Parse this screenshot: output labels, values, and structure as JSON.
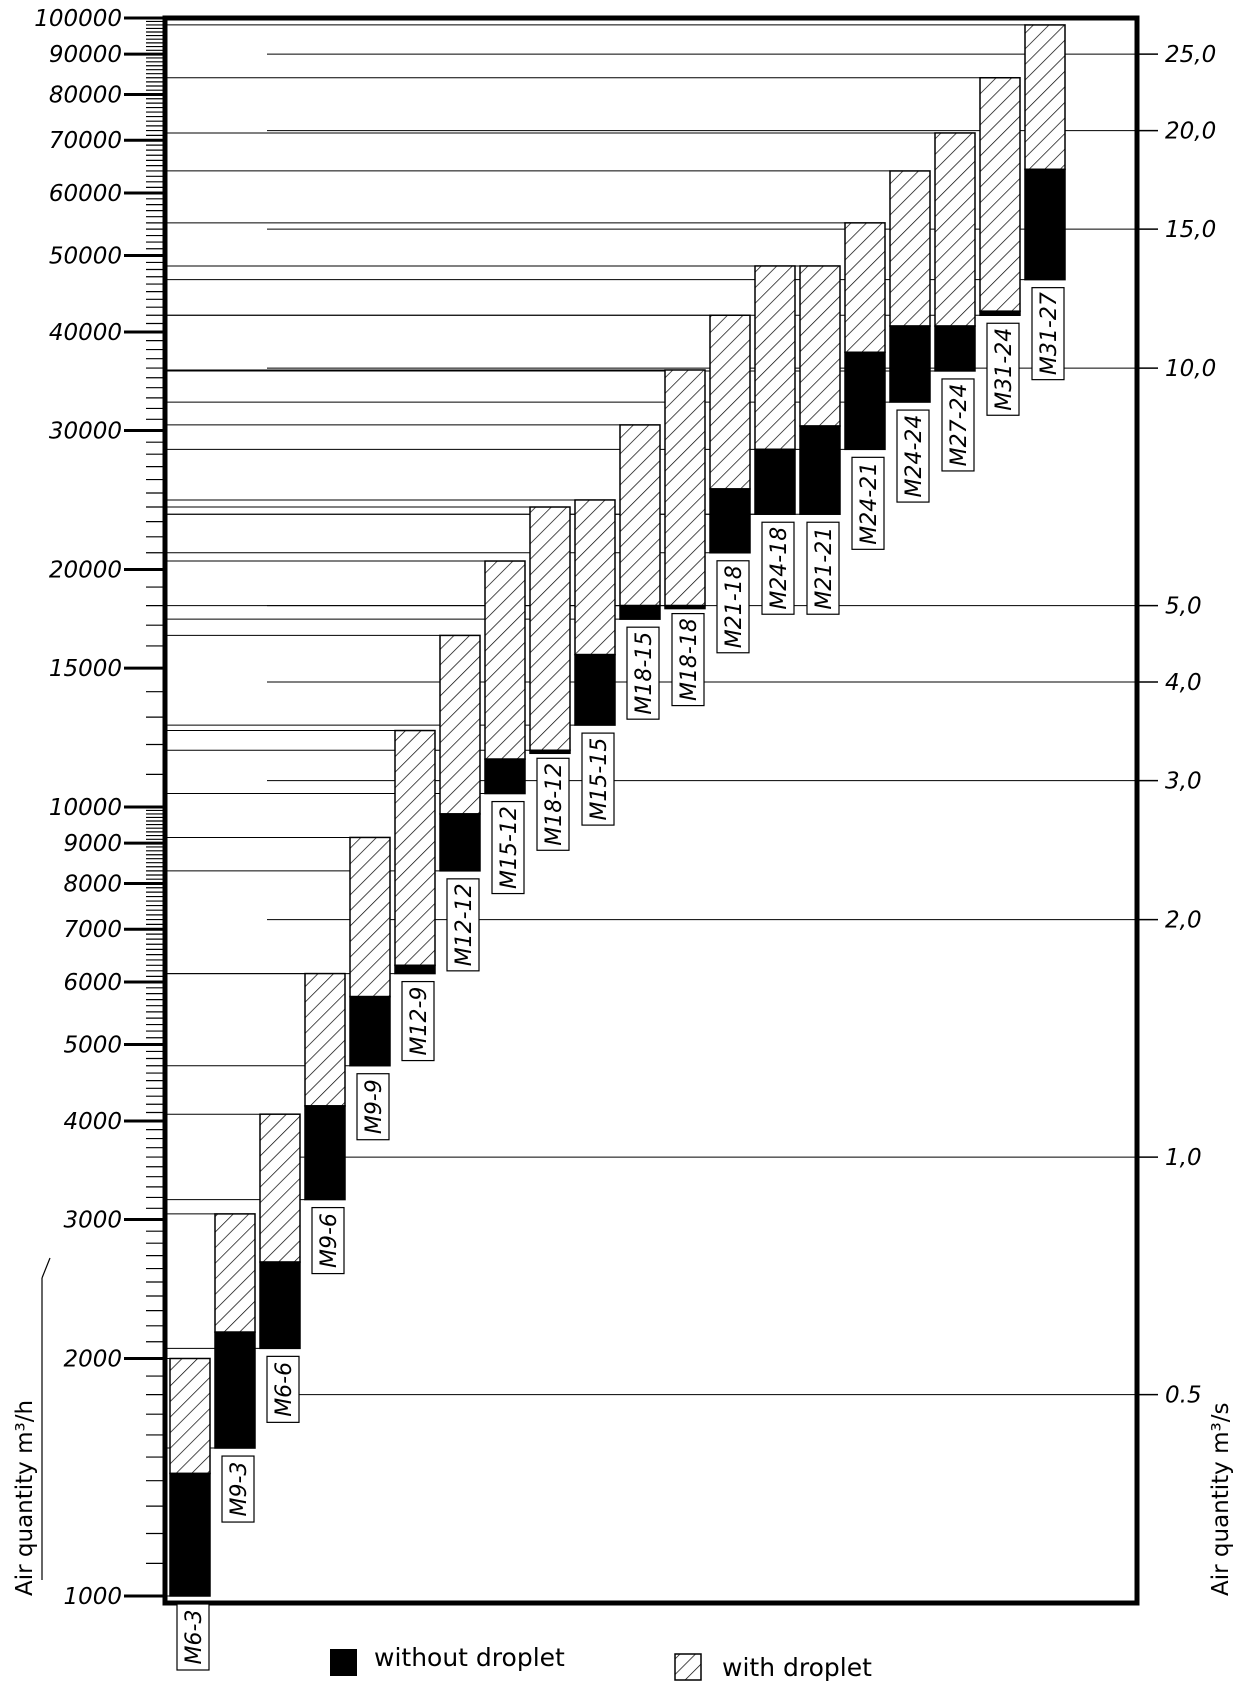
{
  "chart_data": {
    "type": "bar",
    "subtype": "floating-range",
    "y_scale": "log",
    "ylabel": "Air quantity m³/h",
    "y2label": "Air quantity m³/s",
    "ylim": [
      1000,
      100000
    ],
    "grid": false,
    "left_ticks": [
      {
        "value": 1000,
        "label": "1000"
      },
      {
        "value": 2000,
        "label": "2000"
      },
      {
        "value": 3000,
        "label": "3000"
      },
      {
        "value": 4000,
        "label": "4000"
      },
      {
        "value": 5000,
        "label": "5000"
      },
      {
        "value": 6000,
        "label": "6000"
      },
      {
        "value": 7000,
        "label": "7000"
      },
      {
        "value": 8000,
        "label": "8000"
      },
      {
        "value": 9000,
        "label": "9000"
      },
      {
        "value": 10000,
        "label": "10000"
      },
      {
        "value": 15000,
        "label": "15000"
      },
      {
        "value": 20000,
        "label": "20000"
      },
      {
        "value": 30000,
        "label": "30000"
      },
      {
        "value": 40000,
        "label": "40000"
      },
      {
        "value": 50000,
        "label": "50000"
      },
      {
        "value": 60000,
        "label": "60000"
      },
      {
        "value": 70000,
        "label": "70000"
      },
      {
        "value": 80000,
        "label": "80000"
      },
      {
        "value": 90000,
        "label": "90000"
      },
      {
        "value": 100000,
        "label": "100000"
      }
    ],
    "right_ticks": [
      {
        "value": 0.5,
        "label": "0.5"
      },
      {
        "value": 1.0,
        "label": "1,0"
      },
      {
        "value": 2.0,
        "label": "2,0"
      },
      {
        "value": 3.0,
        "label": "3,0"
      },
      {
        "value": 4.0,
        "label": "4,0"
      },
      {
        "value": 5.0,
        "label": "5,0"
      },
      {
        "value": 10.0,
        "label": "10,0"
      },
      {
        "value": 15.0,
        "label": "15,0"
      },
      {
        "value": 20.0,
        "label": "20,0"
      },
      {
        "value": 25.0,
        "label": "25,0"
      }
    ],
    "legend": {
      "placement": "bottom",
      "items": [
        {
          "name": "without droplet",
          "style": "solid"
        },
        {
          "name": "with droplet",
          "style": "hatched"
        }
      ]
    },
    "categories": [
      "M6-3",
      "M9-3",
      "M6-6",
      "M9-6",
      "M9-9",
      "M12-9",
      "M12-12",
      "M15-12",
      "M18-12",
      "M15-15",
      "M18-15",
      "M18-18",
      "M21-18",
      "M24-18",
      "M21-21",
      "M24-21",
      "M24-24",
      "M27-24",
      "M31-24",
      "M31-27"
    ],
    "series": [
      {
        "name": "without droplet",
        "ranges": [
          [
            1000,
            1430
          ],
          [
            1540,
            2160
          ],
          [
            2060,
            2650
          ],
          [
            3180,
            4180
          ],
          [
            4700,
            5750
          ],
          [
            6150,
            6300
          ],
          [
            8300,
            9800
          ],
          [
            10400,
            11500
          ],
          [
            11800,
            11800
          ],
          [
            12700,
            15600
          ],
          [
            17300,
            18000
          ],
          [
            18000,
            18000
          ],
          [
            21000,
            25300
          ],
          [
            23500,
            28400
          ],
          [
            23500,
            30400
          ],
          [
            28400,
            37700
          ],
          [
            32600,
            40700
          ],
          [
            35700,
            40700
          ],
          [
            42000,
            42500
          ],
          [
            46600,
            64300
          ]
        ]
      },
      {
        "name": "with droplet",
        "ranges": [
          [
            1430,
            2000
          ],
          [
            2160,
            3050
          ],
          [
            2650,
            4080
          ],
          [
            4180,
            6150
          ],
          [
            5750,
            9150
          ],
          [
            6300,
            12500
          ],
          [
            9800,
            16500
          ],
          [
            11500,
            20500
          ],
          [
            11800,
            24000
          ],
          [
            15600,
            24500
          ],
          [
            18000,
            30500
          ],
          [
            18000,
            35800
          ],
          [
            25300,
            42000
          ],
          [
            28400,
            48500
          ],
          [
            30400,
            48500
          ],
          [
            37700,
            55000
          ],
          [
            40700,
            64000
          ],
          [
            40700,
            71500
          ],
          [
            42500,
            84000
          ],
          [
            64300,
            98000
          ]
        ]
      }
    ]
  }
}
